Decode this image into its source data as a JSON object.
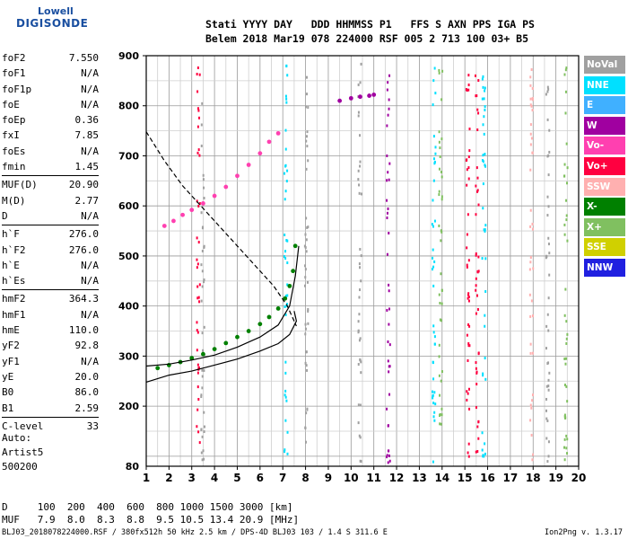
{
  "logo": {
    "line1": "Lowell",
    "line2": "DIGISONDE"
  },
  "header": {
    "row1": "Stati YYYY DAY   DDD HHMMSS P1   FFS S AXN PPS IGA PS",
    "row2": "Belem 2018 Mar19 078 224000 RSF 005 2 713 100 03+ B5"
  },
  "params": {
    "group1": [
      {
        "name": "foF2",
        "value": "7.550"
      },
      {
        "name": "foF1",
        "value": "N/A"
      },
      {
        "name": "foF1p",
        "value": "N/A"
      },
      {
        "name": "foE",
        "value": "N/A"
      },
      {
        "name": "foEp",
        "value": "0.36"
      },
      {
        "name": "fxI",
        "value": "7.85"
      },
      {
        "name": "foEs",
        "value": "N/A"
      },
      {
        "name": "fmin",
        "value": "1.45"
      }
    ],
    "group2": [
      {
        "name": "MUF(D)",
        "value": "20.90"
      },
      {
        "name": "M(D)",
        "value": "2.77"
      },
      {
        "name": "D",
        "value": "N/A"
      }
    ],
    "group3": [
      {
        "name": "h`F",
        "value": "276.0"
      },
      {
        "name": "h`F2",
        "value": "276.0"
      },
      {
        "name": "h`E",
        "value": "N/A"
      },
      {
        "name": "h`Es",
        "value": "N/A"
      }
    ],
    "group4": [
      {
        "name": "hmF2",
        "value": "364.3"
      },
      {
        "name": "hmF1",
        "value": "N/A"
      },
      {
        "name": "hmE",
        "value": "110.0"
      },
      {
        "name": "yF2",
        "value": "92.8"
      },
      {
        "name": "yF1",
        "value": "N/A"
      },
      {
        "name": "yE",
        "value": "20.0"
      },
      {
        "name": "B0",
        "value": "86.0"
      },
      {
        "name": "B1",
        "value": "2.59"
      }
    ],
    "group5": [
      {
        "name": "C-level",
        "value": "33"
      }
    ]
  },
  "auto": {
    "line1": "Auto:",
    "line2": "Artist5",
    "line3": "500200"
  },
  "dmuf": {
    "row1": "D     100  200  400  600  800 1000 1500 3000 [km]",
    "row2": "MUF   7.9  8.0  8.3  8.8  9.5 10.5 13.4 20.9 [MHz]"
  },
  "footer": {
    "left": "BLJ03_2018078224000.RSF / 380fx512h 50 kHz 2.5 km / DPS-4D BLJ03 103 / 1.4 S 311.6 E",
    "right": "Ion2Png v. 1.3.17"
  },
  "legend": [
    {
      "label": "NoVal",
      "color": "#a0a0a0"
    },
    {
      "label": "NNE",
      "color": "#00e0ff"
    },
    {
      "label": "E",
      "color": "#40b0ff"
    },
    {
      "label": "W",
      "color": "#a000a0"
    },
    {
      "label": "Vo-",
      "color": "#ff40b0"
    },
    {
      "label": "Vo+",
      "color": "#ff0040"
    },
    {
      "label": "SSW",
      "color": "#ffb0b0"
    },
    {
      "label": "X-",
      "color": "#008000"
    },
    {
      "label": "X+",
      "color": "#80c060"
    },
    {
      "label": "SSE",
      "color": "#d0d000"
    },
    {
      "label": "NNW",
      "color": "#2020e0"
    }
  ],
  "chart_data": {
    "type": "scatter",
    "x_ticks": [
      "1",
      "2",
      "3",
      "4",
      "5",
      "6",
      "7",
      "8",
      "9",
      "10",
      "11",
      "12",
      "13",
      "14",
      "15",
      "16",
      "17",
      "18",
      "19",
      "20"
    ],
    "y_ticks": [
      "200",
      "300",
      "400",
      "500",
      "600",
      "700",
      "800",
      "900"
    ],
    "y_bottom_label": "80",
    "xlim": [
      1,
      20
    ],
    "ylim": [
      80,
      900
    ],
    "grid": true,
    "legend_position": "right",
    "series": [
      {
        "color": "#008000",
        "points": [
          [
            1.5,
            276
          ],
          [
            2,
            282
          ],
          [
            2.5,
            288
          ],
          [
            3,
            296
          ],
          [
            3.5,
            304
          ],
          [
            4,
            314
          ],
          [
            4.5,
            326
          ],
          [
            5,
            338
          ],
          [
            5.5,
            350
          ],
          [
            6,
            364
          ],
          [
            6.4,
            378
          ],
          [
            6.8,
            395
          ],
          [
            7.1,
            415
          ],
          [
            7.3,
            440
          ],
          [
            7.45,
            470
          ],
          [
            7.55,
            520
          ]
        ]
      },
      {
        "color": "#ff40b0",
        "points": [
          [
            1.8,
            560
          ],
          [
            2.2,
            570
          ],
          [
            2.6,
            582
          ],
          [
            3,
            592
          ],
          [
            3.5,
            605
          ],
          [
            4,
            620
          ],
          [
            4.5,
            638
          ],
          [
            5,
            660
          ],
          [
            5.5,
            682
          ],
          [
            6,
            705
          ],
          [
            6.4,
            728
          ],
          [
            6.8,
            745
          ]
        ]
      },
      {
        "color": "#a000a0",
        "points": [
          [
            9.5,
            810
          ],
          [
            10,
            815
          ],
          [
            10.4,
            818
          ],
          [
            10.8,
            820
          ],
          [
            11,
            822
          ]
        ]
      }
    ],
    "curves": [
      {
        "style": "solid",
        "points": [
          [
            1,
            280
          ],
          [
            2,
            284
          ],
          [
            3,
            292
          ],
          [
            4,
            302
          ],
          [
            5,
            318
          ],
          [
            6,
            338
          ],
          [
            6.8,
            362
          ],
          [
            7.3,
            400
          ],
          [
            7.55,
            460
          ],
          [
            7.7,
            520
          ]
        ]
      },
      {
        "style": "solid",
        "points": [
          [
            1,
            248
          ],
          [
            2,
            262
          ],
          [
            3,
            270
          ],
          [
            4,
            282
          ],
          [
            5,
            294
          ],
          [
            6,
            310
          ],
          [
            6.8,
            325
          ],
          [
            7.3,
            343
          ],
          [
            7.6,
            370
          ],
          [
            7.5,
            390
          ]
        ]
      },
      {
        "style": "dashed",
        "points": [
          [
            1,
            748
          ],
          [
            1.8,
            690
          ],
          [
            2.6,
            640
          ],
          [
            3.4,
            600
          ],
          [
            4.2,
            560
          ],
          [
            5,
            520
          ],
          [
            5.8,
            480
          ],
          [
            6.6,
            440
          ],
          [
            7.2,
            400
          ],
          [
            7.6,
            360
          ]
        ]
      }
    ]
  }
}
